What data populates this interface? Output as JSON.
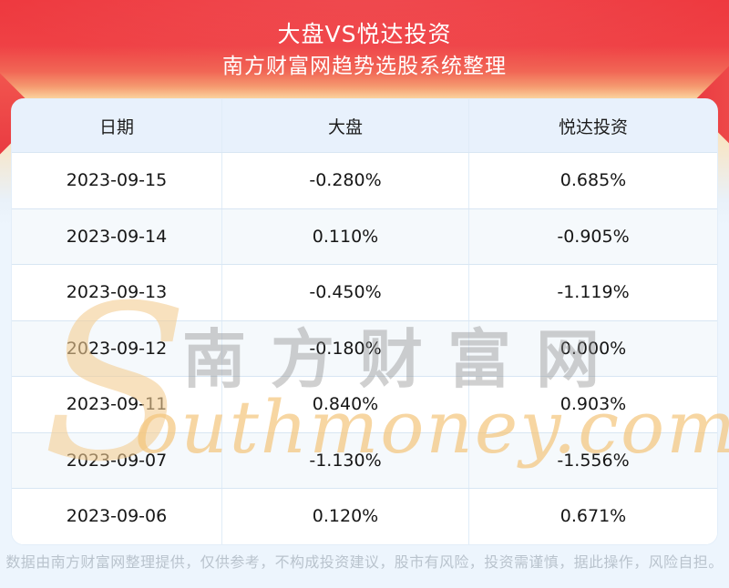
{
  "header": {
    "title": "大盘VS悦达投资",
    "subtitle": "南方财富网趋势选股系统整理"
  },
  "table": {
    "columns": [
      "日期",
      "大盘",
      "悦达投资"
    ],
    "rows": [
      {
        "date": "2023-09-15",
        "market": "-0.280%",
        "stock": "0.685%"
      },
      {
        "date": "2023-09-14",
        "market": "0.110%",
        "stock": "-0.905%"
      },
      {
        "date": "2023-09-13",
        "market": "-0.450%",
        "stock": "-1.119%"
      },
      {
        "date": "2023-09-12",
        "market": "-0.180%",
        "stock": "0.000%"
      },
      {
        "date": "2023-09-11",
        "market": "0.840%",
        "stock": "0.903%"
      },
      {
        "date": "2023-09-07",
        "market": "-1.130%",
        "stock": "-1.556%"
      },
      {
        "date": "2023-09-06",
        "market": "0.120%",
        "stock": "0.671%"
      }
    ]
  },
  "watermark": {
    "swoosh": "S",
    "cn": "南方财富网",
    "en": "outhmoney.com"
  },
  "footer": {
    "disclaimer": "数据由南方财富网整理提供，仅供参考，不构成投资建议，股市有风险，投资需谨慎，据此操作，风险自担。"
  },
  "colors": {
    "banner_red": "#ef4145",
    "banner_peach": "#fcdcab",
    "page_bg": "#edf5fd",
    "table_header_bg": "#e8f1fc",
    "row_alt_bg": "#f5f9fc",
    "grid_line": "#d8e6f3",
    "watermark_orange": "#f3c47a",
    "watermark_gray": "#8a8a8a",
    "footer_text": "#b9c3cd"
  },
  "chart_data": {
    "type": "table",
    "title": "大盘VS悦达投资",
    "subtitle": "南方财富网趋势选股系统整理",
    "columns": [
      "日期",
      "大盘",
      "悦达投资"
    ],
    "rows": [
      [
        "2023-09-15",
        "-0.280%",
        "0.685%"
      ],
      [
        "2023-09-14",
        "0.110%",
        "-0.905%"
      ],
      [
        "2023-09-13",
        "-0.450%",
        "-1.119%"
      ],
      [
        "2023-09-12",
        "-0.180%",
        "0.000%"
      ],
      [
        "2023-09-11",
        "0.840%",
        "0.903%"
      ],
      [
        "2023-09-07",
        "-1.130%",
        "-1.556%"
      ],
      [
        "2023-09-06",
        "0.120%",
        "0.671%"
      ]
    ],
    "series": [
      {
        "name": "大盘",
        "values": [
          -0.28,
          0.11,
          -0.45,
          -0.18,
          0.84,
          -1.13,
          0.12
        ]
      },
      {
        "name": "悦达投资",
        "values": [
          0.685,
          -0.905,
          -1.119,
          0.0,
          0.903,
          -1.556,
          0.671
        ]
      }
    ],
    "categories": [
      "2023-09-15",
      "2023-09-14",
      "2023-09-13",
      "2023-09-12",
      "2023-09-11",
      "2023-09-07",
      "2023-09-06"
    ],
    "unit": "percent"
  }
}
